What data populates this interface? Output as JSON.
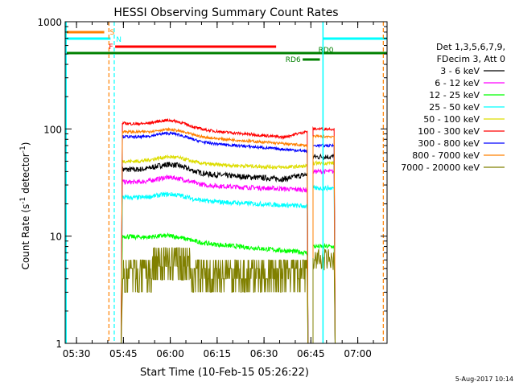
{
  "chart_data": {
    "type": "line",
    "title": "HESSI Observing Summary Count Rates",
    "xlabel": "Start Time (10-Feb-15 05:26:22)",
    "ylabel_main": "Count Rate (s",
    "ylabel_sup1": "-1",
    "ylabel_mid": " detector",
    "ylabel_sup2": "-1",
    "ylabel_end": ")",
    "y_scale": "log",
    "ylim": [
      1,
      1000
    ],
    "xlim_minutes": [
      0,
      103
    ],
    "x_start": "05:26:22",
    "x_ticks": [
      {
        "label": "05:30",
        "min": 3.63
      },
      {
        "label": "05:45",
        "min": 18.63
      },
      {
        "label": "06:00",
        "min": 33.63
      },
      {
        "label": "06:15",
        "min": 48.63
      },
      {
        "label": "06:30",
        "min": 63.63
      },
      {
        "label": "06:45",
        "min": 78.63
      },
      {
        "label": "07:00",
        "min": 93.63
      }
    ],
    "y_ticks": [
      {
        "label": "1",
        "v": 1
      },
      {
        "label": "10",
        "v": 10
      },
      {
        "label": "100",
        "v": 100
      },
      {
        "label": "1000",
        "v": 1000
      }
    ],
    "legend_header": [
      "Det 1,3,5,6,7,9,",
      "FDecim 3, Att 0"
    ],
    "series": [
      {
        "name": "3 - 6 keV",
        "color": "#000000",
        "base": 42,
        "end": 33,
        "flare": 0.18,
        "noise": 0.06,
        "post": 1.15,
        "lastval": 55
      },
      {
        "name": "6 - 12 keV",
        "color": "#ff00ff",
        "base": 32,
        "end": 27,
        "flare": 0.15,
        "noise": 0.05,
        "post": 1.0,
        "lastval": 40
      },
      {
        "name": "12 - 25 keV",
        "color": "#00ff00",
        "base": 10,
        "end": 7,
        "flare": 0.1,
        "noise": 0.05,
        "post": 1.0,
        "lastval": 8
      },
      {
        "name": "25 - 50 keV",
        "color": "#00ffff",
        "base": 23,
        "end": 19,
        "flare": 0.12,
        "noise": 0.05,
        "post": 1.0,
        "lastval": 28
      },
      {
        "name": "50 - 100 keV",
        "color": "#dddd00",
        "base": 50,
        "end": 43,
        "flare": 0.14,
        "noise": 0.04,
        "post": 1.05,
        "lastval": 48
      },
      {
        "name": "100 - 300 keV",
        "color": "#ff0000",
        "base": 113,
        "end": 80,
        "flare": 0.16,
        "noise": 0.03,
        "post": 1.2,
        "lastval": 100
      },
      {
        "name": "300 - 800 keV",
        "color": "#0000ff",
        "base": 85,
        "end": 62,
        "flare": 0.16,
        "noise": 0.03,
        "post": 1.0,
        "lastval": 70
      },
      {
        "name": "800 - 7000 keV",
        "color": "#ff8000",
        "base": 95,
        "end": 70,
        "flare": 0.12,
        "noise": 0.03,
        "post": 1.0,
        "lastval": 85
      },
      {
        "name": "7000 - 20000 keV",
        "color": "#808000",
        "base": 3.5,
        "end": 3.8,
        "flare": 0.5,
        "noise": 0.25,
        "post": 1.0,
        "lastval": 6
      }
    ],
    "flags": [
      {
        "label": "S",
        "color": "#ff8000"
      },
      {
        "label": "N",
        "color": "#00ffff"
      },
      {
        "label": "F",
        "color": "#ff0000"
      },
      {
        "label": "RD0",
        "color": "#008000"
      },
      {
        "label": "RD6",
        "color": "#008000"
      }
    ]
  },
  "footer": {
    "date": "5-Aug-2017 10:14"
  }
}
